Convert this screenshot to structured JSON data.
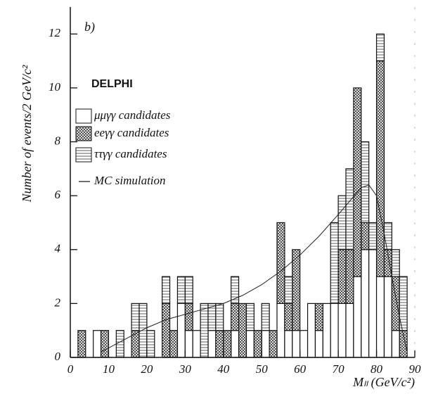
{
  "chart_data": {
    "type": "stacked-histogram",
    "panel_label": "b)",
    "experiment": "DELPHI",
    "xlabel": "Mₗₗ (GeV/c²)",
    "ylabel": "Number of events/2 GeV/c²",
    "bins": [
      0,
      2,
      4,
      6,
      8,
      10,
      12,
      14,
      16,
      18,
      20,
      22,
      24,
      26,
      28,
      30,
      32,
      34,
      36,
      38,
      40,
      42,
      44,
      46,
      48,
      50,
      52,
      54,
      56,
      58,
      60,
      62,
      64,
      66,
      68,
      70,
      72,
      74,
      76,
      78,
      80,
      82,
      84,
      86,
      88,
      90
    ],
    "series": [
      {
        "name": "μμγγ candidates",
        "pattern": "none",
        "values": [
          0,
          0,
          0,
          1,
          0,
          0,
          0,
          0,
          0,
          0,
          0,
          0,
          0,
          0,
          2,
          1,
          1,
          0,
          1,
          0,
          0,
          1,
          0,
          1,
          0,
          1,
          0,
          2,
          1,
          1,
          1,
          2,
          1,
          2,
          2,
          2,
          2,
          3,
          4,
          4,
          3,
          3,
          1,
          0,
          0
        ]
      },
      {
        "name": "eeγγ candidates",
        "pattern": "crosshatch",
        "values": [
          0,
          1,
          0,
          0,
          1,
          0,
          0,
          0,
          1,
          0,
          0,
          0,
          2,
          1,
          0,
          1,
          0,
          0,
          0,
          1,
          1,
          1,
          2,
          0,
          1,
          0,
          1,
          3,
          1,
          3,
          0,
          0,
          1,
          0,
          0,
          2,
          2,
          7,
          1,
          0,
          8,
          1,
          2,
          1,
          0
        ]
      },
      {
        "name": "ττγγ candidates",
        "pattern": "hlines",
        "values": [
          0,
          0,
          0,
          0,
          0,
          0,
          1,
          0,
          1,
          2,
          1,
          0,
          1,
          0,
          1,
          1,
          0,
          2,
          1,
          1,
          0,
          1,
          0,
          1,
          0,
          1,
          0,
          0,
          1,
          0,
          0,
          0,
          0,
          0,
          3,
          2,
          3,
          0,
          3,
          1,
          1,
          1,
          1,
          2,
          0
        ]
      }
    ],
    "mc": {
      "name": "MC simulation",
      "x": [
        8,
        12,
        16,
        20,
        25,
        30,
        35,
        40,
        45,
        50,
        55,
        60,
        65,
        70,
        73,
        76,
        78,
        80,
        82,
        84,
        86,
        88
      ],
      "values": [
        0.2,
        0.5,
        0.8,
        1.1,
        1.4,
        1.6,
        1.8,
        2.0,
        2.3,
        2.7,
        3.2,
        3.8,
        4.5,
        5.3,
        5.8,
        6.3,
        6.4,
        6.0,
        4.6,
        3.0,
        1.5,
        0.2
      ]
    },
    "xlim": [
      0,
      90
    ],
    "ylim": [
      0,
      13
    ],
    "xticks": [
      0,
      10,
      20,
      30,
      40,
      50,
      60,
      70,
      80,
      90
    ],
    "yticks": [
      0,
      2,
      4,
      6,
      8,
      10,
      12
    ]
  }
}
